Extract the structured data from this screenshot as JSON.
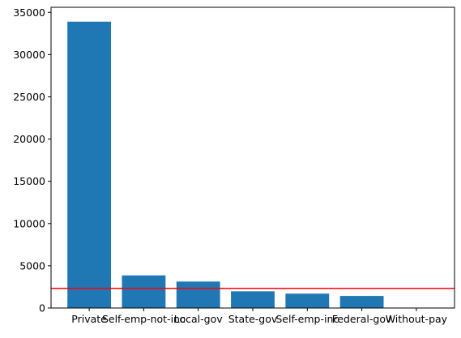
{
  "chart_data": {
    "type": "bar",
    "title": "",
    "xlabel": "",
    "ylabel": "",
    "categories": [
      "Private",
      "Self-emp-not-inc",
      "Local-gov",
      "State-gov",
      "Self-emp-inc",
      "Federal-gov",
      "Without-pay"
    ],
    "values": [
      33900,
      3860,
      3130,
      1980,
      1700,
      1430,
      20
    ],
    "ylim": [
      0,
      35600
    ],
    "yticks": [
      0,
      5000,
      10000,
      15000,
      20000,
      25000,
      30000,
      35000
    ],
    "reference_line": {
      "y": 2330,
      "color": "#ff0000"
    },
    "bar_color": "#1f77b4",
    "grid": false
  }
}
